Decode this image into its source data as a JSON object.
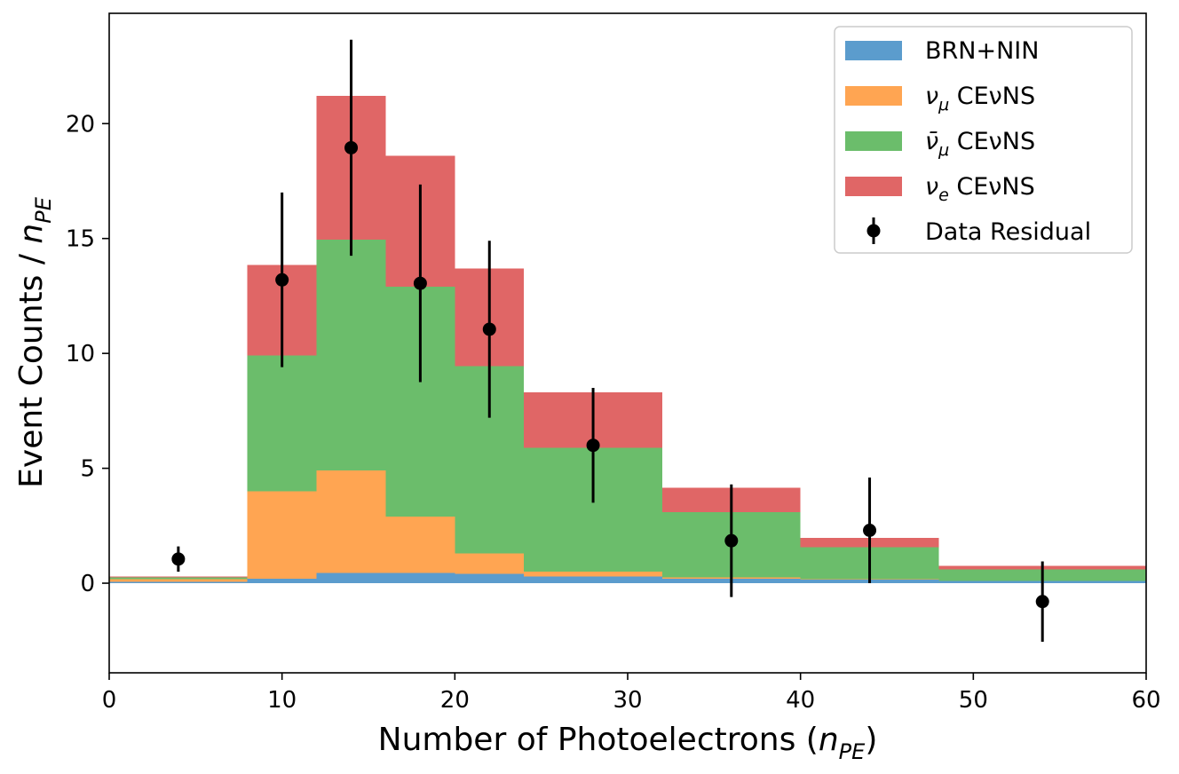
{
  "chart_data": {
    "type": "bar",
    "stacked": true,
    "histogram": true,
    "xlabel": "Number of Photoelectrons (",
    "xlabel_math": "n",
    "xlabel_math_sub": "PE",
    "xlabel_suffix": ")",
    "ylabel": "Event Counts / ",
    "ylabel_math": "n",
    "ylabel_math_sub": "PE",
    "xlim": [
      0,
      60
    ],
    "ylim": [
      -3.9,
      24.8
    ],
    "xticks": [
      0,
      10,
      20,
      30,
      40,
      50,
      60
    ],
    "yticks": [
      0,
      5,
      10,
      15,
      20
    ],
    "bin_edges": [
      0,
      8,
      12,
      16,
      20,
      24,
      32,
      40,
      48,
      60
    ],
    "series": [
      {
        "name": "BRN+NIN",
        "color": "#5b9ccd",
        "values": [
          0.05,
          0.2,
          0.45,
          0.45,
          0.4,
          0.3,
          0.2,
          0.15,
          0.1
        ]
      },
      {
        "name": "ν_μ CEνNS",
        "color": "#ffa552",
        "values": [
          0.12,
          3.8,
          4.45,
          2.45,
          0.9,
          0.2,
          0.05,
          0.02,
          0.0
        ]
      },
      {
        "name": "ν̄_μ CEνNS",
        "color": "#6bbd6b",
        "values": [
          0.08,
          5.9,
          10.05,
          10.0,
          8.15,
          5.4,
          2.85,
          1.4,
          0.5
        ]
      },
      {
        "name": "ν_e CEνNS",
        "color": "#e06666",
        "values": [
          0.05,
          3.95,
          6.25,
          5.7,
          4.25,
          2.4,
          1.05,
          0.4,
          0.15
        ]
      }
    ],
    "data_residual": {
      "name": "Data Residual",
      "x": [
        4,
        10,
        14,
        18,
        22,
        28,
        36,
        44,
        54
      ],
      "y": [
        1.05,
        13.2,
        18.95,
        13.05,
        11.05,
        6.0,
        1.85,
        2.3,
        -0.8
      ],
      "yerr": [
        0.55,
        3.8,
        4.7,
        4.3,
        3.85,
        2.5,
        2.45,
        2.3,
        1.75
      ]
    },
    "legend": [
      {
        "label": "BRN+NIN",
        "kind": "patch",
        "color": "#5b9ccd"
      },
      {
        "label_main": "ν",
        "label_sub": "μ",
        "label_tail": " CEνNS",
        "kind": "patch",
        "color": "#ffa552"
      },
      {
        "label_main": "ν̄",
        "label_sub": "μ",
        "label_tail": " CEνNS",
        "kind": "patch",
        "color": "#6bbd6b"
      },
      {
        "label_main": "ν",
        "label_sub": "e",
        "label_tail": " CEνNS",
        "kind": "patch",
        "color": "#e06666"
      },
      {
        "label": "Data Residual",
        "kind": "errorbar",
        "color": "#000000"
      }
    ],
    "legend_position": "top-right",
    "grid": false
  }
}
